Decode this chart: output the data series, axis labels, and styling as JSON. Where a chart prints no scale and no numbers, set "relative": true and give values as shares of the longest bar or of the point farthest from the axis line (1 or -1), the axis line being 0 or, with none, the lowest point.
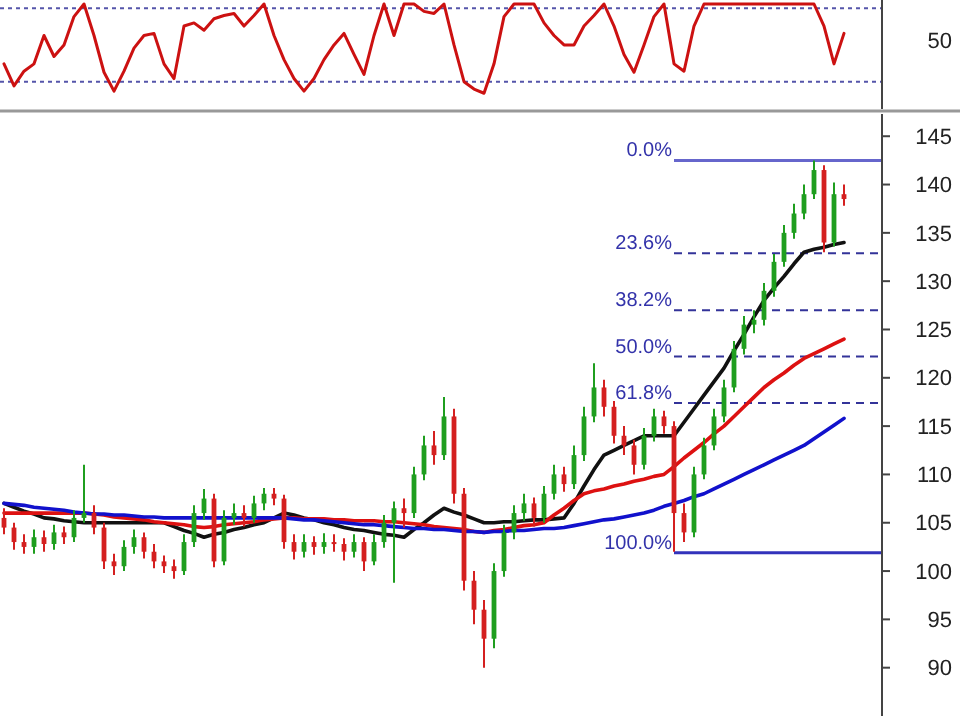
{
  "chart_data": [
    {
      "type": "line",
      "categories": [
        null,
        null,
        null,
        null,
        null,
        null,
        null,
        null,
        null,
        null,
        null,
        null,
        null,
        null,
        null,
        null,
        null,
        null,
        null,
        null,
        null,
        null,
        null,
        null,
        null,
        null,
        null,
        null,
        null,
        null,
        null,
        null,
        null,
        null,
        null,
        null,
        null,
        null,
        null,
        null,
        null,
        null,
        null,
        null,
        null,
        null,
        null,
        null,
        null,
        null,
        null,
        null,
        null,
        null,
        null,
        null,
        null,
        null,
        null,
        null,
        null,
        null,
        null,
        null,
        null,
        null,
        null,
        null,
        null,
        null,
        null,
        null,
        null,
        null,
        null,
        null,
        null,
        null,
        null,
        null,
        null,
        null,
        null,
        null,
        null
      ],
      "series": [
        {
          "color": "#cc1111",
          "values": [
            0.43,
            0.22,
            0.36,
            0.43,
            0.7,
            0.5,
            0.61,
            0.88,
            1,
            0.7,
            0.35,
            0.17,
            0.36,
            0.58,
            0.7,
            0.72,
            0.43,
            0.29,
            0.79,
            0.82,
            0.75,
            0.86,
            0.89,
            0.91,
            0.79,
            0.89,
            1,
            0.7,
            0.47,
            0.29,
            0.17,
            0.29,
            0.47,
            0.61,
            0.72,
            0.52,
            0.33,
            0.7,
            1,
            0.7,
            1,
            1,
            0.93,
            0.91,
            1,
            0.61,
            0.26,
            0.19,
            0.15,
            0.43,
            0.88,
            1,
            1,
            1,
            0.82,
            0.7,
            0.61,
            0.61,
            0.79,
            0.89,
            1,
            0.79,
            0.52,
            0.35,
            0.61,
            0.88,
            1,
            0.43,
            0.36,
            0.79,
            1,
            1,
            1,
            1,
            1,
            1,
            1,
            1,
            1,
            1,
            1,
            1,
            0.79,
            0.43,
            0.72
          ]
        }
      ],
      "relative": true,
      "annotations": [
        "50"
      ],
      "ref_lines": [
        {
          "axis": "y",
          "value": 0.96,
          "color": "#5555aa",
          "line_style": "dotted"
        },
        {
          "axis": "y",
          "value": 0.26,
          "color": "#5555aa",
          "line_style": "dotted"
        }
      ]
    },
    {
      "type": "candlestick",
      "categories": [
        null,
        null,
        null,
        null,
        null,
        null,
        null,
        null,
        null,
        null,
        null,
        null,
        null,
        null,
        null,
        null,
        null,
        null,
        null,
        null,
        null,
        null,
        null,
        null,
        null,
        null,
        null,
        null,
        null,
        null,
        null,
        null,
        null,
        null,
        null,
        null,
        null,
        null,
        null,
        null,
        null,
        null,
        null,
        null,
        null,
        null,
        null,
        null,
        null,
        null,
        null,
        null,
        null,
        null,
        null,
        null,
        null,
        null,
        null,
        null,
        null,
        null,
        null,
        null,
        null,
        null,
        null,
        null,
        null,
        null,
        null,
        null,
        null,
        null,
        null,
        null,
        null,
        null,
        null,
        null,
        null,
        null,
        null,
        null,
        null
      ],
      "ohlc": [
        [
          105.5,
          106.5,
          103.8,
          104.5
        ],
        [
          104.5,
          105,
          102.2,
          103
        ],
        [
          103,
          103.8,
          101.8,
          102.5
        ],
        [
          102.5,
          104.3,
          101.8,
          103.5
        ],
        [
          103.5,
          104.2,
          102,
          102.8
        ],
        [
          102.8,
          104.8,
          102.2,
          104
        ],
        [
          104,
          104.6,
          102.8,
          103.5
        ],
        [
          103.5,
          106.3,
          103,
          105.5
        ],
        [
          105.5,
          111,
          105,
          106
        ],
        [
          106,
          106.8,
          103.8,
          104.5
        ],
        [
          104.5,
          105,
          100.2,
          101
        ],
        [
          101,
          101.8,
          99.6,
          100.5
        ],
        [
          100.5,
          103.2,
          100,
          102.5
        ],
        [
          102.5,
          104.3,
          101.8,
          103.5
        ],
        [
          103.5,
          104,
          101.3,
          102
        ],
        [
          102,
          102.8,
          100.3,
          101
        ],
        [
          101,
          101.6,
          99.8,
          100.5
        ],
        [
          100.5,
          101.2,
          99.2,
          100
        ],
        [
          100,
          103.8,
          99.6,
          103
        ],
        [
          103,
          106.8,
          102.5,
          106
        ],
        [
          106,
          108.5,
          105.3,
          107.5
        ],
        [
          107.5,
          108,
          100.4,
          101
        ],
        [
          101,
          106.3,
          100.6,
          105.5
        ],
        [
          105.5,
          107,
          104.8,
          106
        ],
        [
          106,
          106.8,
          104.6,
          105.5
        ],
        [
          105.5,
          107.8,
          105,
          107
        ],
        [
          107,
          108.6,
          106.3,
          108
        ],
        [
          108,
          108.6,
          106.8,
          107.5
        ],
        [
          107.5,
          107.9,
          102.3,
          103
        ],
        [
          103,
          103.8,
          101.2,
          102
        ],
        [
          102,
          103.8,
          101.4,
          103
        ],
        [
          103,
          103.6,
          101.7,
          102.5
        ],
        [
          102.5,
          103.9,
          101.8,
          103
        ],
        [
          103,
          103.8,
          102,
          102.8
        ],
        [
          102.8,
          103.4,
          101.1,
          102
        ],
        [
          102,
          103.8,
          101.4,
          103
        ],
        [
          103,
          103.5,
          100,
          101
        ],
        [
          101,
          103.8,
          100.6,
          103
        ],
        [
          103,
          105.8,
          102.4,
          105
        ],
        [
          105,
          107.2,
          98.8,
          106.5
        ],
        [
          106.5,
          107.5,
          104.5,
          106
        ],
        [
          106,
          110.8,
          105.5,
          110
        ],
        [
          110,
          114,
          109.4,
          113
        ],
        [
          113,
          114.5,
          111,
          112
        ],
        [
          112,
          118,
          111.5,
          116
        ],
        [
          116,
          116.8,
          107,
          108
        ],
        [
          108,
          108.6,
          98,
          99
        ],
        [
          99,
          100,
          94.5,
          96
        ],
        [
          96,
          97,
          90,
          93
        ],
        [
          93,
          100.8,
          92,
          100
        ],
        [
          100,
          104.8,
          99.4,
          104
        ],
        [
          104,
          106.8,
          103.3,
          106
        ],
        [
          106,
          108,
          105.2,
          107
        ],
        [
          107,
          107.6,
          104.6,
          105.5
        ],
        [
          105.5,
          108.8,
          105,
          108
        ],
        [
          108,
          111,
          107.4,
          110
        ],
        [
          110,
          110.8,
          108.2,
          109
        ],
        [
          109,
          113,
          108.5,
          112
        ],
        [
          112,
          117,
          111.4,
          116
        ],
        [
          116,
          121.5,
          115.4,
          119
        ],
        [
          119,
          119.8,
          116,
          117
        ],
        [
          117,
          117.6,
          113.2,
          114
        ],
        [
          114,
          115,
          112,
          113
        ],
        [
          113,
          113.6,
          110,
          111
        ],
        [
          111,
          114.8,
          110.5,
          114
        ],
        [
          114,
          116.8,
          113.4,
          116
        ],
        [
          116,
          116.6,
          114.2,
          115
        ],
        [
          115,
          115.5,
          102,
          106
        ],
        [
          106,
          107,
          103,
          104
        ],
        [
          104,
          110.8,
          103.5,
          110
        ],
        [
          110,
          113.8,
          109.5,
          113
        ],
        [
          113,
          116.8,
          112.5,
          116
        ],
        [
          116,
          119.8,
          115.4,
          119
        ],
        [
          119,
          123.8,
          118.5,
          123
        ],
        [
          123,
          126.4,
          122.4,
          125.5
        ],
        [
          125.5,
          127,
          124.6,
          126
        ],
        [
          126,
          129.8,
          125.4,
          129
        ],
        [
          129,
          132.8,
          128.4,
          132
        ],
        [
          132,
          135.8,
          131.5,
          135
        ],
        [
          135,
          138,
          134.4,
          137
        ],
        [
          137,
          140,
          136.4,
          139
        ],
        [
          139,
          142.5,
          138.5,
          141.5
        ],
        [
          141.5,
          142,
          133,
          134
        ],
        [
          134,
          140.2,
          133.6,
          139
        ],
        [
          139,
          140,
          137.8,
          138.5
        ]
      ],
      "colors": [
        "#d42020",
        "#d42020",
        "#d42020",
        "#1f9e1f",
        "#d42020",
        "#1f9e1f",
        "#d42020",
        "#1f9e1f",
        "#1f9e1f",
        "#d42020",
        "#d42020",
        "#d42020",
        "#1f9e1f",
        "#1f9e1f",
        "#d42020",
        "#d42020",
        "#d42020",
        "#d42020",
        "#1f9e1f",
        "#1f9e1f",
        "#1f9e1f",
        "#d42020",
        "#1f9e1f",
        "#1f9e1f",
        "#d42020",
        "#1f9e1f",
        "#1f9e1f",
        "#d42020",
        "#d42020",
        "#d42020",
        "#1f9e1f",
        "#d42020",
        "#1f9e1f",
        "#d42020",
        "#d42020",
        "#1f9e1f",
        "#d42020",
        "#1f9e1f",
        "#1f9e1f",
        "#1f9e1f",
        "#d42020",
        "#1f9e1f",
        "#1f9e1f",
        "#d42020",
        "#1f9e1f",
        "#d42020",
        "#d42020",
        "#d42020",
        "#d42020",
        "#1f9e1f",
        "#1f9e1f",
        "#1f9e1f",
        "#1f9e1f",
        "#d42020",
        "#1f9e1f",
        "#1f9e1f",
        "#d42020",
        "#1f9e1f",
        "#1f9e1f",
        "#1f9e1f",
        "#d42020",
        "#d42020",
        "#d42020",
        "#d42020",
        "#1f9e1f",
        "#1f9e1f",
        "#d42020",
        "#d42020",
        "#d42020",
        "#1f9e1f",
        "#1f9e1f",
        "#1f9e1f",
        "#1f9e1f",
        "#1f9e1f",
        "#1f9e1f",
        "#1f9e1f",
        "#1f9e1f",
        "#1f9e1f",
        "#1f9e1f",
        "#1f9e1f",
        "#1f9e1f",
        "#1f9e1f",
        "#d42020",
        "#1f9e1f",
        "#d42020"
      ],
      "series": [
        {
          "type": "line",
          "color": "#111111",
          "values": [
            107,
            106.6,
            106.2,
            105.9,
            105.5,
            105.4,
            105.2,
            105.1,
            105,
            105,
            105,
            105,
            105,
            105,
            105,
            105,
            105,
            104.6,
            104.2,
            103.9,
            103.5,
            103.8,
            104,
            104.3,
            104.5,
            104.8,
            105,
            105.5,
            106,
            105.8,
            105.5,
            105.3,
            105,
            104.8,
            104.5,
            104.3,
            104.2,
            104,
            103.8,
            103.7,
            103.5,
            104.3,
            105,
            105.8,
            106.5,
            106.1,
            105.8,
            105.4,
            105,
            105,
            105.1,
            105.1,
            105.2,
            105.3,
            105.3,
            105.4,
            105.5,
            107,
            108.8,
            110.5,
            112,
            112.5,
            113,
            113.5,
            114,
            114,
            114,
            114,
            115.4,
            116.8,
            118.2,
            119.6,
            121,
            122.8,
            124.5,
            126.3,
            128,
            129.3,
            130.5,
            131.8,
            133,
            133.3,
            133.5,
            133.8,
            134
          ]
        },
        {
          "type": "line",
          "color": "#dd1111",
          "values": [
            106,
            106,
            106,
            106,
            106,
            106,
            106,
            106,
            106,
            105.9,
            105.8,
            105.6,
            105.5,
            105.4,
            105.3,
            105.1,
            105,
            104.9,
            104.8,
            104.6,
            104.5,
            104.6,
            104.8,
            104.9,
            105,
            105.1,
            105.3,
            105.4,
            105.5,
            105.5,
            105.4,
            105.4,
            105.4,
            105.3,
            105.3,
            105.2,
            105.2,
            105.2,
            105.1,
            105.1,
            105,
            104.9,
            104.8,
            104.6,
            104.5,
            104.4,
            104.3,
            104.1,
            104,
            104.2,
            104.3,
            104.5,
            104.7,
            104.8,
            105,
            105.8,
            106.5,
            107.3,
            108,
            108.3,
            108.5,
            108.8,
            109,
            109.3,
            109.5,
            109.8,
            110,
            110.8,
            111.7,
            112.5,
            113.3,
            114.2,
            115,
            116,
            117,
            118,
            119,
            119.8,
            120.5,
            121.3,
            122,
            122.5,
            123,
            123.5,
            124
          ]
        },
        {
          "type": "line",
          "color": "#1111cc",
          "values": [
            107,
            106.9,
            106.8,
            106.6,
            106.5,
            106.4,
            106.3,
            106.1,
            106,
            105.9,
            105.9,
            105.8,
            105.8,
            105.7,
            105.6,
            105.6,
            105.5,
            105.5,
            105.5,
            105.5,
            105.5,
            105.5,
            105.5,
            105.5,
            105.5,
            105.5,
            105.5,
            105.5,
            105.5,
            105.4,
            105.3,
            105.3,
            105.2,
            105.1,
            105,
            104.9,
            104.8,
            104.8,
            104.7,
            104.6,
            104.5,
            104.4,
            104.4,
            104.3,
            104.3,
            104.2,
            104.1,
            104.1,
            104,
            104.1,
            104.1,
            104.2,
            104.2,
            104.3,
            104.4,
            104.4,
            104.5,
            104.7,
            104.9,
            105.1,
            105.3,
            105.4,
            105.6,
            105.8,
            106,
            106.3,
            106.7,
            107,
            107.3,
            107.7,
            108,
            108.5,
            109,
            109.5,
            110,
            110.5,
            111,
            111.5,
            112,
            112.5,
            113,
            113.7,
            114.4,
            115.1,
            115.8
          ]
        }
      ],
      "ylim": [
        85,
        147.3
      ],
      "yticks": [
        90,
        95,
        100,
        105,
        110,
        115,
        120,
        125,
        130,
        135,
        140,
        145
      ],
      "ref_lines": [
        {
          "axis": "y",
          "value": 142.5,
          "color": "#6666cc",
          "line_style": "solid"
        },
        {
          "axis": "y",
          "value": 132.9,
          "color": "#333399",
          "line_style": "dashed"
        },
        {
          "axis": "y",
          "value": 127,
          "color": "#333399",
          "line_style": "dashed"
        },
        {
          "axis": "y",
          "value": 122.2,
          "color": "#333399",
          "line_style": "dashed"
        },
        {
          "axis": "y",
          "value": 117.4,
          "color": "#333399",
          "line_style": "dashed"
        },
        {
          "axis": "y",
          "value": 101.9,
          "color": "#3333bb",
          "line_style": "solid"
        }
      ],
      "annotations": [
        "0.0%",
        "23.6%",
        "38.2%",
        "50.0%",
        "61.8%",
        "100.0%"
      ]
    }
  ]
}
